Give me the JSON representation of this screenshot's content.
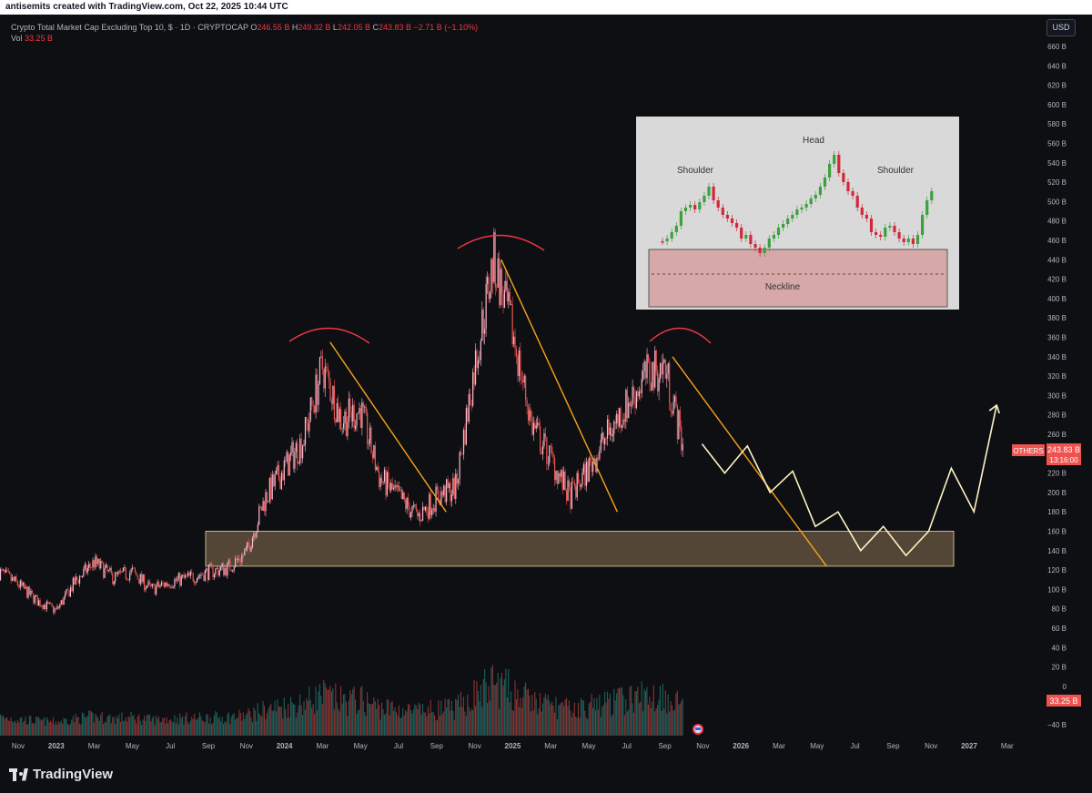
{
  "header": {
    "author_line": "antisemits created with TradingView.com, Oct 22, 2025 10:44 UTC"
  },
  "legend": {
    "title": "Crypto Total Market Cap Excluding Top 10, $ · 1D · CRYPTOCAP",
    "o_label": "O",
    "o_value": "246.55 B",
    "h_label": "H",
    "h_value": "249.32 B",
    "l_label": "L",
    "l_value": "242.05 B",
    "c_label": "C",
    "c_value": "243.83 B",
    "change": "−2.71 B (−1.10%)",
    "vol_label": "Vol",
    "vol_value": "33.25 B"
  },
  "currency_button": "USD",
  "brand": "TradingView",
  "colors": {
    "up": "#26a69a",
    "down": "#ef5350",
    "candle_pink": "#f48fb1",
    "trendline": "#f7a21b",
    "projection": "#fff3c4",
    "annotation": "#f23645",
    "support_zone": "#6b5a43",
    "background": "#0e0f12"
  },
  "chart_data": [
    {
      "type": "line",
      "title": "",
      "ylabel": "",
      "y_ticks": [
        "660 B",
        "640 B",
        "620 B",
        "600 B",
        "580 B",
        "560 B",
        "540 B",
        "520 B",
        "500 B",
        "480 B",
        "460 B",
        "440 B",
        "420 B",
        "400 B",
        "380 B",
        "360 B",
        "340 B",
        "320 B",
        "300 B",
        "280 B",
        "260 B",
        "240 B",
        "220 B",
        "200 B",
        "180 B",
        "160 B",
        "140 B",
        "120 B",
        "100 B",
        "80 B",
        "60 B",
        "40 B",
        "20 B",
        "0",
        "−40 B"
      ],
      "x_ticks": [
        "Nov",
        "2023",
        "Mar",
        "May",
        "Jul",
        "Sep",
        "Nov",
        "2024",
        "Mar",
        "May",
        "Jul",
        "Sep",
        "Nov",
        "2025",
        "Mar",
        "May",
        "Jul",
        "Sep",
        "Nov",
        "2026",
        "Mar",
        "May",
        "Jul",
        "Sep",
        "Nov",
        "2027",
        "Mar"
      ],
      "series": [
        {
          "x": [
            "2022-10",
            "2022-11",
            "2022-12",
            "2023-01",
            "2023-02",
            "2023-03",
            "2023-04",
            "2023-05",
            "2023-06",
            "2023-07",
            "2023-08",
            "2023-09",
            "2023-10",
            "2023-11",
            "2023-12",
            "2024-01",
            "2024-02",
            "2024-03",
            "2024-04",
            "2024-05",
            "2024-06",
            "2024-07",
            "2024-08",
            "2024-09",
            "2024-10",
            "2024-11",
            "2024-12",
            "2025-01",
            "2025-02",
            "2025-03",
            "2025-04",
            "2025-05",
            "2025-06",
            "2025-07",
            "2025-08",
            "2025-09",
            "2025-10"
          ],
          "y": [
            118,
            105,
            88,
            78,
            108,
            128,
            112,
            118,
            100,
            108,
            112,
            118,
            122,
            138,
            195,
            225,
            255,
            330,
            275,
            285,
            215,
            195,
            175,
            195,
            205,
            330,
            440,
            365,
            270,
            235,
            195,
            225,
            260,
            290,
            320,
            330,
            244
          ]
        }
      ],
      "projection_path": {
        "x": [
          "2025-10",
          "2025-11",
          "2025-12",
          "2026-01",
          "2026-02",
          "2026-03",
          "2026-04",
          "2026-05",
          "2026-06",
          "2026-07",
          "2026-08",
          "2026-09",
          "2026-10",
          "2026-11"
        ],
        "y": [
          250,
          220,
          248,
          200,
          222,
          165,
          180,
          140,
          165,
          135,
          160,
          225,
          180,
          290
        ]
      },
      "support_zone": {
        "y_range": [
          124,
          160
        ]
      },
      "price_label": {
        "name": "OTHERS",
        "value": "243.83 B",
        "countdown": "13:16:00"
      },
      "volume_label": "33.25 B"
    },
    {
      "type": "line",
      "title": "",
      "annotations": [
        "Shoulder",
        "Head",
        "Shoulder",
        "Neckline"
      ]
    }
  ]
}
